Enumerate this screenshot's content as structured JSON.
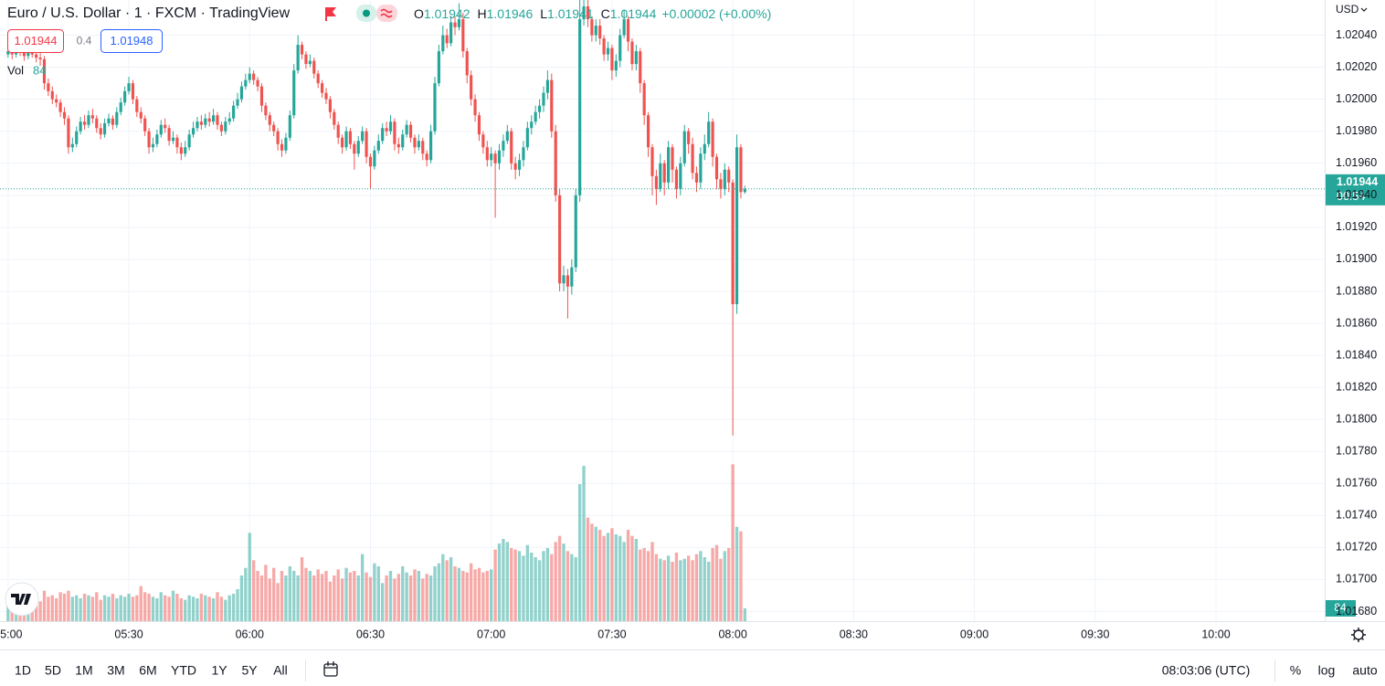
{
  "header": {
    "symbol": "Euro / U.S. Dollar · 1 · FXCM · TradingView",
    "ohlc_labels": [
      "O",
      "H",
      "L",
      "C"
    ],
    "change": "+0.00002 (+0.00%)",
    "sell": 1.01944,
    "spread": 0.4,
    "buy": 1.01948,
    "volume_label": "Vol"
  },
  "chart_data": {
    "type": "candlestick",
    "currency": "USD",
    "countdown": "00:54",
    "up_color": "#26a69a",
    "down_color": "#ef5350",
    "grid": true,
    "xlim": [
      "04:58",
      "10:27"
    ],
    "xticks": [
      "05:00",
      "05:30",
      "06:00",
      "06:30",
      "07:00",
      "07:30",
      "08:00",
      "08:30",
      "09:00",
      "09:30",
      "10:00"
    ],
    "ylim": [
      1.01674,
      1.02062
    ],
    "yticks": [
      {
        "value": 1.0168,
        "label": "1.01680"
      },
      {
        "value": 1.017,
        "label": "1.01700"
      },
      {
        "value": 1.0172,
        "label": "1.01720"
      },
      {
        "value": 1.0174,
        "label": "1.01740"
      },
      {
        "value": 1.0176,
        "label": "1.01760"
      },
      {
        "value": 1.0178,
        "label": "1.01780"
      },
      {
        "value": 1.018,
        "label": "1.01800"
      },
      {
        "value": 1.0182,
        "label": "1.01820"
      },
      {
        "value": 1.0184,
        "label": "1.01840"
      },
      {
        "value": 1.0186,
        "label": "1.01860"
      },
      {
        "value": 1.0188,
        "label": "1.01880"
      },
      {
        "value": 1.019,
        "label": "1.01900"
      },
      {
        "value": 1.0192,
        "label": "1.01920"
      },
      {
        "value": 1.0194,
        "label": "1.01940"
      },
      {
        "value": 1.0196,
        "label": "1.01960"
      },
      {
        "value": 1.0198,
        "label": "1.01980"
      },
      {
        "value": 1.02,
        "label": "1.02000"
      },
      {
        "value": 1.0202,
        "label": "1.02020"
      },
      {
        "value": 1.0204,
        "label": "1.02040"
      }
    ],
    "volume_ylim": [
      0,
      1200
    ],
    "x": [
      "05:00",
      "05:01",
      "05:02",
      "05:03",
      "05:04",
      "05:05",
      "05:06",
      "05:07",
      "05:08",
      "05:09",
      "05:10",
      "05:11",
      "05:12",
      "05:13",
      "05:14",
      "05:15",
      "05:16",
      "05:17",
      "05:18",
      "05:19",
      "05:20",
      "05:21",
      "05:22",
      "05:23",
      "05:24",
      "05:25",
      "05:26",
      "05:27",
      "05:28",
      "05:29",
      "05:30",
      "05:31",
      "05:32",
      "05:33",
      "05:34",
      "05:35",
      "05:36",
      "05:37",
      "05:38",
      "05:39",
      "05:40",
      "05:41",
      "05:42",
      "05:43",
      "05:44",
      "05:45",
      "05:46",
      "05:47",
      "05:48",
      "05:49",
      "05:50",
      "05:51",
      "05:52",
      "05:53",
      "05:54",
      "05:55",
      "05:56",
      "05:57",
      "05:58",
      "05:59",
      "06:00",
      "06:01",
      "06:02",
      "06:03",
      "06:04",
      "06:05",
      "06:06",
      "06:07",
      "06:08",
      "06:09",
      "06:10",
      "06:11",
      "06:12",
      "06:13",
      "06:14",
      "06:15",
      "06:16",
      "06:17",
      "06:18",
      "06:19",
      "06:20",
      "06:21",
      "06:22",
      "06:23",
      "06:24",
      "06:25",
      "06:26",
      "06:27",
      "06:28",
      "06:29",
      "06:30",
      "06:31",
      "06:32",
      "06:33",
      "06:34",
      "06:35",
      "06:36",
      "06:37",
      "06:38",
      "06:39",
      "06:40",
      "06:41",
      "06:42",
      "06:43",
      "06:44",
      "06:45",
      "06:46",
      "06:47",
      "06:48",
      "06:49",
      "06:50",
      "06:51",
      "06:52",
      "06:53",
      "06:54",
      "06:55",
      "06:56",
      "06:57",
      "06:58",
      "06:59",
      "07:00",
      "07:01",
      "07:02",
      "07:03",
      "07:04",
      "07:05",
      "07:06",
      "07:07",
      "07:08",
      "07:09",
      "07:10",
      "07:11",
      "07:12",
      "07:13",
      "07:14",
      "07:15",
      "07:16",
      "07:17",
      "07:18",
      "07:19",
      "07:20",
      "07:21",
      "07:22",
      "07:23",
      "07:24",
      "07:25",
      "07:26",
      "07:27",
      "07:28",
      "07:29",
      "07:30",
      "07:31",
      "07:32",
      "07:33",
      "07:34",
      "07:35",
      "07:36",
      "07:37",
      "07:38",
      "07:39",
      "07:40",
      "07:41",
      "07:42",
      "07:43",
      "07:44",
      "07:45",
      "07:46",
      "07:47",
      "07:48",
      "07:49",
      "07:50",
      "07:51",
      "07:52",
      "07:53",
      "07:54",
      "07:55",
      "07:56",
      "07:57",
      "07:58",
      "07:59",
      "08:00",
      "08:01",
      "08:02",
      "08:03"
    ],
    "open": [
      1.02028,
      1.0203,
      1.02028,
      1.02031,
      1.02029,
      1.02027,
      1.0203,
      1.02028,
      1.02026,
      1.02025,
      1.0201,
      1.02005,
      1.02,
      1.01998,
      1.01992,
      1.01988,
      1.0197,
      1.01972,
      1.0198,
      1.01986,
      1.01984,
      1.0199,
      1.01988,
      1.01982,
      1.01978,
      1.01985,
      1.01988,
      1.01984,
      1.01992,
      1.01998,
      1.02005,
      1.0201,
      1.02,
      1.01992,
      1.01988,
      1.0198,
      1.0197,
      1.01972,
      1.01978,
      1.01984,
      1.01982,
      1.01974,
      1.01976,
      1.0197,
      1.01966,
      1.0197,
      1.01978,
      1.01982,
      1.01986,
      1.01984,
      1.01988,
      1.01986,
      1.0199,
      1.01984,
      1.0198,
      1.01986,
      1.01988,
      1.01996,
      1.02,
      1.02008,
      1.02012,
      1.02016,
      1.02012,
      1.02008,
      1.01996,
      1.0199,
      1.01984,
      1.0198,
      1.01972,
      1.01968,
      1.01976,
      1.0199,
      1.02018,
      1.02034,
      1.02028,
      1.02022,
      1.02024,
      1.02016,
      1.0201,
      1.02004,
      1.02,
      1.01992,
      1.01984,
      1.01976,
      1.0197,
      1.0198,
      1.01972,
      1.01966,
      1.01974,
      1.0198,
      1.01964,
      1.01958,
      1.01968,
      1.01974,
      1.01982,
      1.0198,
      1.01986,
      1.01972,
      1.0197,
      1.01978,
      1.01984,
      1.01976,
      1.0197,
      1.01974,
      1.01966,
      1.01962,
      1.0198,
      1.0201,
      1.0203,
      1.0204,
      1.02035,
      1.02048,
      1.02045,
      1.0205,
      1.0203,
      1.02015,
      1.02,
      1.0199,
      1.01978,
      1.0197,
      1.01962,
      1.01966,
      1.0196,
      1.01968,
      1.01974,
      1.0198,
      1.0196,
      1.01956,
      1.01962,
      1.0197,
      1.01982,
      1.01986,
      1.01992,
      1.01996,
      1.02004,
      1.02012,
      1.0198,
      1.0194,
      1.01885,
      1.0189,
      1.01883,
      1.01895,
      1.0194,
      1.0205,
      1.02058,
      1.0205,
      1.0204,
      1.02046,
      1.02038,
      1.02028,
      1.02032,
      1.02018,
      1.02024,
      1.0204,
      1.0205,
      1.02036,
      1.02022,
      1.0203,
      1.0201,
      1.0199,
      1.0197,
      1.01952,
      1.01944,
      1.0196,
      1.01948,
      1.0197,
      1.01956,
      1.01944,
      1.0196,
      1.0198,
      1.01972,
      1.01954,
      1.01948,
      1.01966,
      1.01972,
      1.01986,
      1.01964,
      1.0195,
      1.01944,
      1.01956,
      1.01948,
      1.01872,
      1.0197,
      1.01942
    ],
    "high": [
      1.02033,
      1.02034,
      1.02035,
      1.02033,
      1.02031,
      1.02034,
      1.02032,
      1.0203,
      1.02029,
      1.02027,
      1.02013,
      1.02008,
      1.02003,
      1.02,
      1.01995,
      1.0199,
      1.01976,
      1.01983,
      1.01989,
      1.0199,
      1.01993,
      1.01994,
      1.0199,
      1.01985,
      1.01988,
      1.01991,
      1.0199,
      1.01995,
      1.02001,
      1.02008,
      1.02014,
      1.02012,
      1.02002,
      1.01995,
      1.0199,
      1.01982,
      1.01976,
      1.01981,
      1.01987,
      1.01988,
      1.01984,
      1.0198,
      1.01978,
      1.01973,
      1.01974,
      1.01981,
      1.01986,
      1.01989,
      1.0199,
      1.01991,
      1.01992,
      1.01994,
      1.01992,
      1.01986,
      1.01989,
      1.01992,
      1.01999,
      1.02004,
      1.02011,
      1.02016,
      1.0202,
      1.02018,
      1.02014,
      1.0201,
      1.01998,
      1.01992,
      1.01986,
      1.01982,
      1.01975,
      1.01979,
      1.01993,
      1.02022,
      1.0204,
      1.02036,
      1.0203,
      1.02028,
      1.02026,
      1.02018,
      1.02012,
      1.02007,
      1.02002,
      1.01994,
      1.01986,
      1.01978,
      1.01983,
      1.01982,
      1.01974,
      1.01977,
      1.01983,
      1.01982,
      1.01966,
      1.01971,
      1.01978,
      1.01985,
      1.01986,
      1.0199,
      1.01988,
      1.01976,
      1.01981,
      1.01987,
      1.01986,
      1.01978,
      1.01978,
      1.01976,
      1.01968,
      1.01984,
      1.02014,
      1.02034,
      1.02046,
      1.02044,
      1.02052,
      1.02052,
      1.0206,
      1.02054,
      1.02032,
      1.02018,
      1.02003,
      1.01992,
      1.0198,
      1.01974,
      1.0197,
      1.01968,
      1.01972,
      1.01978,
      1.01984,
      1.01982,
      1.01964,
      1.01966,
      1.01974,
      1.01986,
      1.0199,
      1.01996,
      1.02,
      1.02008,
      1.02018,
      1.02016,
      1.01984,
      1.01944,
      1.01896,
      1.01894,
      1.019,
      1.01944,
      1.02065,
      1.02065,
      1.02062,
      1.02052,
      1.0205,
      1.0205,
      1.0204,
      1.02036,
      1.02034,
      1.02028,
      1.02044,
      1.02056,
      1.02052,
      1.02038,
      1.02034,
      1.02032,
      1.02012,
      1.01992,
      1.01972,
      1.01956,
      1.01966,
      1.01962,
      1.01974,
      1.01972,
      1.01958,
      1.01964,
      1.01984,
      1.01982,
      1.01976,
      1.01958,
      1.0197,
      1.01978,
      1.01992,
      1.01988,
      1.01966,
      1.01954,
      1.0196,
      1.01958,
      1.0195,
      1.01978,
      1.01972,
      1.01946
    ],
    "low": [
      1.02026,
      1.02025,
      1.02026,
      1.02027,
      1.02024,
      1.02025,
      1.02026,
      1.02023,
      1.02021,
      1.02006,
      1.02002,
      1.01997,
      1.01995,
      1.01989,
      1.01984,
      1.01966,
      1.01967,
      1.0197,
      1.01978,
      1.01981,
      1.01982,
      1.01985,
      1.01979,
      1.01975,
      1.01976,
      1.01983,
      1.01981,
      1.01982,
      1.0199,
      1.01996,
      1.02003,
      1.01997,
      1.01989,
      1.01985,
      1.01977,
      1.01966,
      1.01967,
      1.0197,
      1.01976,
      1.01979,
      1.01971,
      1.01972,
      1.01966,
      1.01962,
      1.01964,
      1.01968,
      1.01976,
      1.0198,
      1.01981,
      1.01982,
      1.01983,
      1.01984,
      1.01981,
      1.01977,
      1.01978,
      1.01984,
      1.01986,
      1.01994,
      1.01998,
      1.02006,
      1.0201,
      1.02009,
      1.02005,
      1.01992,
      1.01987,
      1.0198,
      1.01977,
      1.01968,
      1.01964,
      1.01966,
      1.01974,
      1.01988,
      1.02016,
      1.02025,
      1.02019,
      1.0202,
      1.02013,
      1.02007,
      1.02001,
      1.01997,
      1.01988,
      1.01981,
      1.01972,
      1.01966,
      1.01968,
      1.01969,
      1.01956,
      1.01964,
      1.01972,
      1.0196,
      1.01944,
      1.01956,
      1.01966,
      1.01972,
      1.01977,
      1.01978,
      1.01968,
      1.01966,
      1.01968,
      1.01976,
      1.01973,
      1.01966,
      1.01968,
      1.01962,
      1.01958,
      1.0196,
      1.01978,
      1.02008,
      1.02028,
      1.02032,
      1.02033,
      1.0204,
      1.02043,
      1.02026,
      1.0201,
      1.01996,
      1.01986,
      1.01974,
      1.01966,
      1.01958,
      1.01958,
      1.01926,
      1.01956,
      1.01964,
      1.01972,
      1.01956,
      1.0195,
      1.01952,
      1.01958,
      1.01968,
      1.01978,
      1.01984,
      1.01988,
      1.01992,
      1.02,
      1.01976,
      1.01936,
      1.0188,
      1.0188,
      1.01863,
      1.01878,
      1.01892,
      1.01936,
      1.02046,
      1.02045,
      1.02036,
      1.02036,
      1.02034,
      1.02024,
      1.02024,
      1.02012,
      1.02014,
      1.0202,
      1.02038,
      1.0203,
      1.02018,
      1.02018,
      1.02004,
      1.01984,
      1.01964,
      1.0194,
      1.01934,
      1.01942,
      1.0194,
      1.01944,
      1.01948,
      1.01938,
      1.0194,
      1.01958,
      1.01966,
      1.0195,
      1.01942,
      1.01944,
      1.01962,
      1.0197,
      1.01958,
      1.01944,
      1.01938,
      1.0194,
      1.01942,
      1.0179,
      1.01866,
      1.01938,
      1.01941
    ],
    "close": [
      1.0203,
      1.02028,
      1.02031,
      1.02029,
      1.02027,
      1.0203,
      1.02028,
      1.02026,
      1.02025,
      1.0201,
      1.02005,
      1.02,
      1.01998,
      1.01992,
      1.01988,
      1.0197,
      1.01972,
      1.0198,
      1.01986,
      1.01984,
      1.0199,
      1.01988,
      1.01982,
      1.01978,
      1.01985,
      1.01988,
      1.01984,
      1.01992,
      1.01998,
      1.02005,
      1.0201,
      1.02,
      1.01992,
      1.01988,
      1.0198,
      1.0197,
      1.01972,
      1.01978,
      1.01984,
      1.01982,
      1.01974,
      1.01976,
      1.0197,
      1.01966,
      1.0197,
      1.01978,
      1.01982,
      1.01986,
      1.01984,
      1.01988,
      1.01986,
      1.0199,
      1.01984,
      1.0198,
      1.01986,
      1.01988,
      1.01996,
      1.02,
      1.02008,
      1.02012,
      1.02016,
      1.02012,
      1.02008,
      1.01996,
      1.0199,
      1.01984,
      1.0198,
      1.01972,
      1.01968,
      1.01976,
      1.0199,
      1.02018,
      1.02034,
      1.02028,
      1.02022,
      1.02024,
      1.02016,
      1.0201,
      1.02004,
      1.02,
      1.01992,
      1.01984,
      1.01976,
      1.0197,
      1.0198,
      1.01972,
      1.01966,
      1.01974,
      1.0198,
      1.01964,
      1.01958,
      1.01968,
      1.01974,
      1.01982,
      1.0198,
      1.01986,
      1.01972,
      1.0197,
      1.01978,
      1.01984,
      1.01976,
      1.0197,
      1.01974,
      1.01966,
      1.01962,
      1.0198,
      1.0201,
      1.0203,
      1.0204,
      1.02035,
      1.02048,
      1.02045,
      1.0205,
      1.0203,
      1.02015,
      1.02,
      1.0199,
      1.01978,
      1.0197,
      1.01962,
      1.01966,
      1.0196,
      1.01968,
      1.01974,
      1.0198,
      1.0196,
      1.01956,
      1.01962,
      1.0197,
      1.01982,
      1.01986,
      1.01992,
      1.01996,
      1.02004,
      1.02012,
      1.0198,
      1.0194,
      1.01885,
      1.0189,
      1.01883,
      1.01895,
      1.0194,
      1.0205,
      1.02058,
      1.0205,
      1.0204,
      1.02046,
      1.02038,
      1.02028,
      1.02032,
      1.02018,
      1.02024,
      1.0204,
      1.0205,
      1.02036,
      1.02022,
      1.0203,
      1.0201,
      1.0199,
      1.0197,
      1.01952,
      1.01944,
      1.0196,
      1.01948,
      1.0197,
      1.01956,
      1.01944,
      1.0196,
      1.0198,
      1.01972,
      1.01954,
      1.01948,
      1.01966,
      1.01972,
      1.01986,
      1.01964,
      1.0195,
      1.01944,
      1.01956,
      1.01948,
      1.01872,
      1.0197,
      1.01942,
      1.01944
    ],
    "volume": [
      150,
      120,
      200,
      180,
      160,
      190,
      140,
      170,
      130,
      200,
      160,
      170,
      150,
      190,
      180,
      200,
      160,
      170,
      150,
      180,
      170,
      160,
      190,
      140,
      170,
      160,
      180,
      150,
      170,
      160,
      180,
      160,
      170,
      230,
      190,
      180,
      160,
      150,
      190,
      170,
      160,
      200,
      180,
      150,
      140,
      170,
      160,
      150,
      180,
      170,
      160,
      150,
      190,
      160,
      140,
      170,
      180,
      210,
      300,
      350,
      580,
      400,
      330,
      300,
      370,
      280,
      350,
      250,
      330,
      300,
      360,
      330,
      300,
      420,
      350,
      330,
      300,
      340,
      310,
      330,
      260,
      300,
      340,
      280,
      350,
      320,
      330,
      300,
      440,
      320,
      290,
      380,
      360,
      250,
      300,
      330,
      280,
      310,
      360,
      320,
      300,
      340,
      330,
      280,
      310,
      300,
      360,
      380,
      440,
      400,
      420,
      360,
      350,
      330,
      320,
      380,
      340,
      350,
      320,
      330,
      340,
      470,
      510,
      540,
      520,
      480,
      470,
      460,
      430,
      500,
      450,
      420,
      400,
      460,
      480,
      440,
      520,
      560,
      510,
      460,
      440,
      420,
      900,
      1020,
      680,
      640,
      620,
      600,
      560,
      580,
      610,
      570,
      560,
      520,
      600,
      560,
      540,
      470,
      480,
      460,
      520,
      440,
      410,
      400,
      430,
      390,
      450,
      400,
      410,
      430,
      400,
      440,
      460,
      420,
      390,
      480,
      500,
      410,
      460,
      480,
      1030,
      620,
      590,
      84
    ]
  },
  "toolbar": {
    "ranges": [
      "1D",
      "5D",
      "1M",
      "3M",
      "6M",
      "YTD",
      "1Y",
      "5Y",
      "All"
    ],
    "clock": "08:03:06 (UTC)",
    "options": [
      "%",
      "log",
      "auto"
    ]
  }
}
